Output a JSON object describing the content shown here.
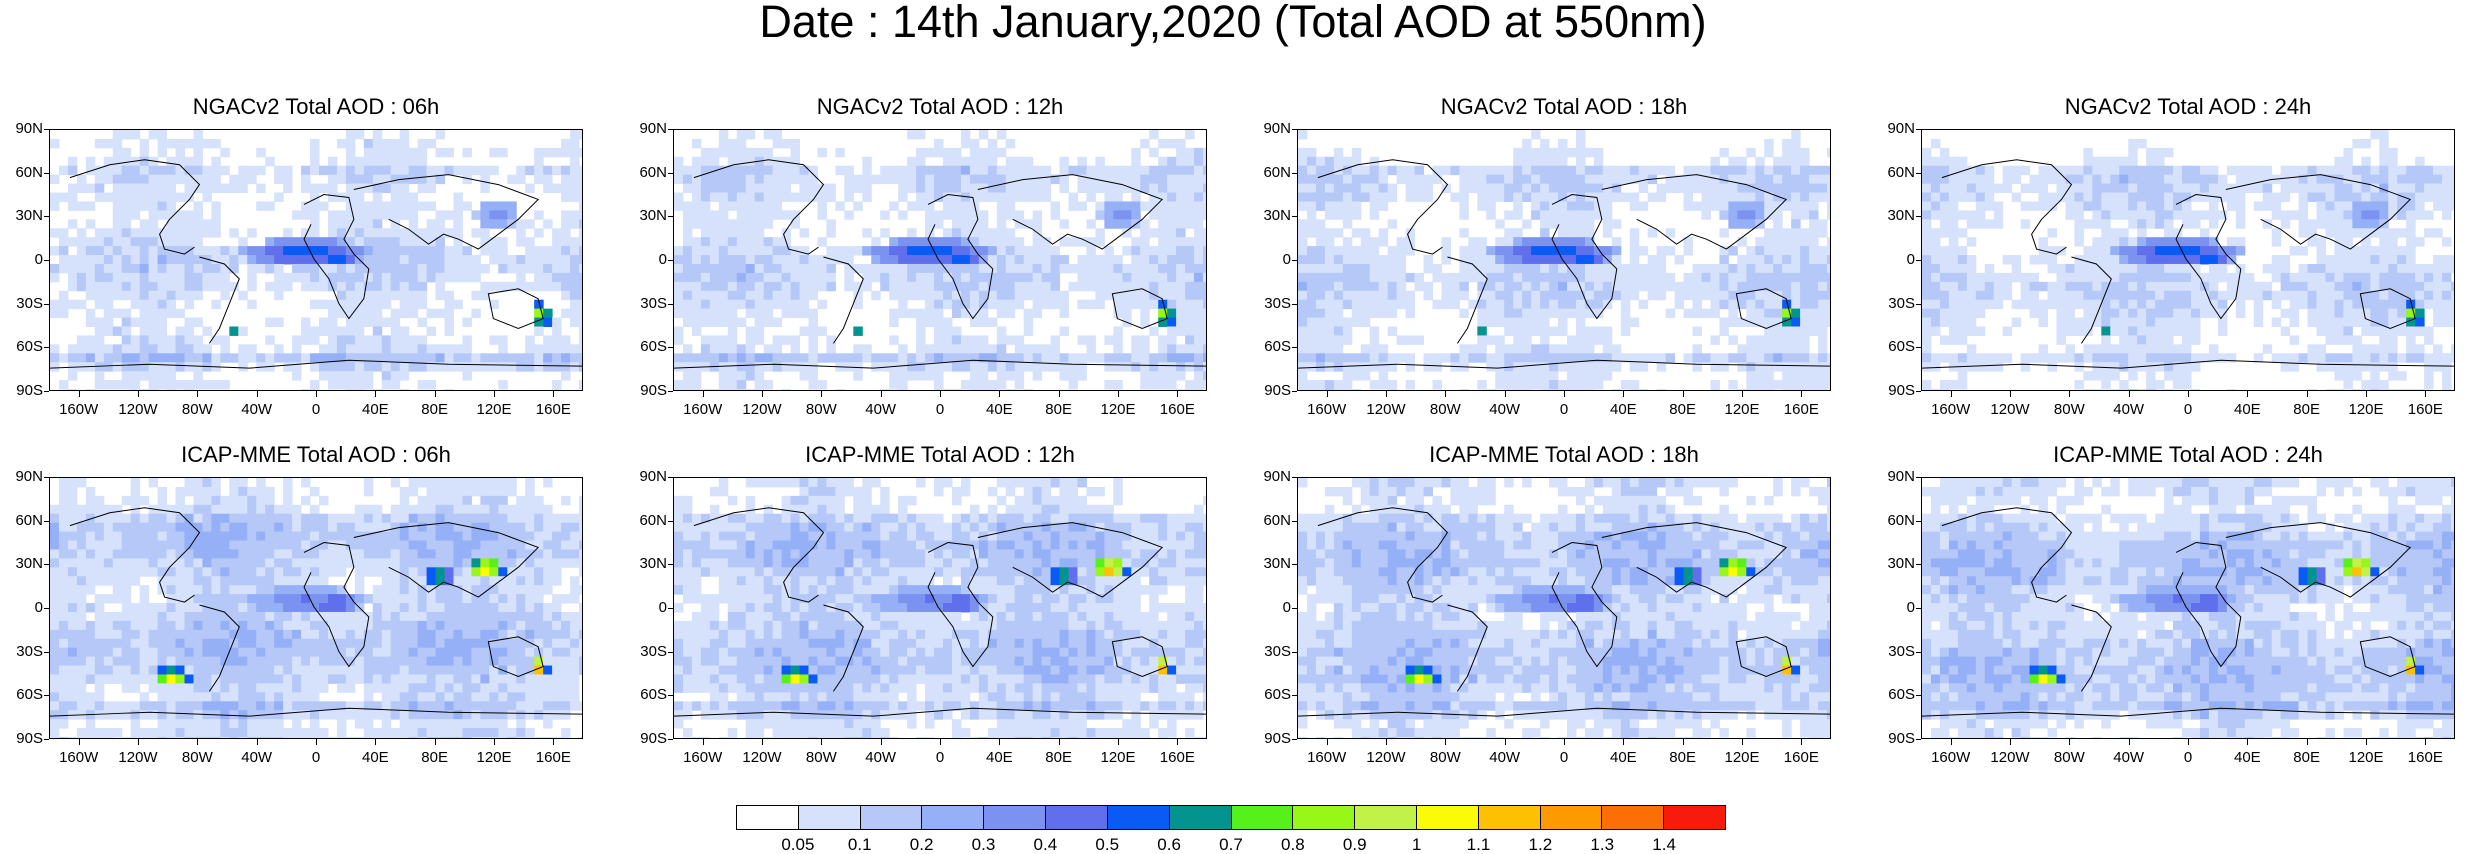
{
  "figure_title": "Date : 14th January,2020 (Total AOD at 550nm)",
  "panels": [
    {
      "title": "NGACv2 Total AOD : 06h",
      "model": "NGACv2",
      "hour": "06h"
    },
    {
      "title": "NGACv2 Total AOD : 12h",
      "model": "NGACv2",
      "hour": "12h"
    },
    {
      "title": "NGACv2 Total AOD : 18h",
      "model": "NGACv2",
      "hour": "18h"
    },
    {
      "title": "NGACv2 Total AOD : 24h",
      "model": "NGACv2",
      "hour": "24h"
    },
    {
      "title": "ICAP-MME Total AOD : 06h",
      "model": "ICAP-MME",
      "hour": "06h"
    },
    {
      "title": "ICAP-MME Total AOD : 12h",
      "model": "ICAP-MME",
      "hour": "12h"
    },
    {
      "title": "ICAP-MME Total AOD : 18h",
      "model": "ICAP-MME",
      "hour": "18h"
    },
    {
      "title": "ICAP-MME Total AOD : 24h",
      "model": "ICAP-MME",
      "hour": "24h"
    }
  ],
  "lat_labels": [
    "90N",
    "60N",
    "30N",
    "0",
    "30S",
    "60S",
    "90S"
  ],
  "lon_labels": [
    "160W",
    "120W",
    "80W",
    "40W",
    "0",
    "40E",
    "80E",
    "120E",
    "160E"
  ],
  "lon_values": [
    -160,
    -120,
    -80,
    -40,
    0,
    40,
    80,
    120,
    160
  ],
  "lat_values": [
    90,
    60,
    30,
    0,
    -30,
    -60,
    -90
  ],
  "colorbar": {
    "labels": [
      "0.05",
      "0.1",
      "0.2",
      "0.3",
      "0.4",
      "0.5",
      "0.6",
      "0.7",
      "0.8",
      "0.9",
      "1",
      "1.1",
      "1.2",
      "1.3",
      "1.4"
    ],
    "colors": [
      "#ffffff",
      "#d6e2fb",
      "#b5c8f8",
      "#95b0f6",
      "#7b92f0",
      "#6070ec",
      "#0a5bf5",
      "#03948f",
      "#56f01a",
      "#96f718",
      "#c0f247",
      "#fdfa07",
      "#fdc003",
      "#fd9a00",
      "#fc6f07",
      "#f81a0c"
    ]
  },
  "map_extent": {
    "lon": [
      -180,
      180
    ],
    "lat": [
      -90,
      90
    ]
  }
}
